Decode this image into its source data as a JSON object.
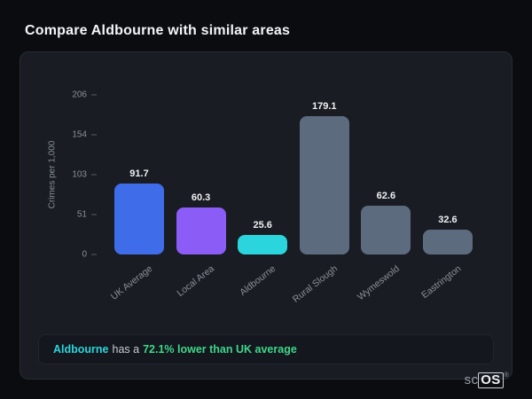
{
  "page": {
    "title": "Compare Aldbourne with similar areas"
  },
  "chart_data": {
    "type": "bar",
    "title": "",
    "categories": [
      "UK Average",
      "Local Area",
      "Aldbourne",
      "Rural Slough",
      "Wymeswold",
      "Eastrington"
    ],
    "values": [
      91.7,
      60.3,
      25.6,
      179.1,
      62.6,
      32.6
    ],
    "value_labels": [
      "91.7",
      "60.3",
      "25.6",
      "179.1",
      "62.6",
      "32.6"
    ],
    "bar_colors": [
      "#3f6de9",
      "#8b5cf6",
      "#2ad5dd",
      "#5d6b7f",
      "#5d6b7f",
      "#5d6b7f"
    ],
    "xlabel": "",
    "ylabel": "Crimes per 1,000",
    "ylim": [
      0,
      206
    ],
    "yticks": [
      0,
      51,
      103,
      154,
      206
    ],
    "grid": false,
    "legend": false
  },
  "footer": {
    "area_name": "Aldbourne",
    "connector": "has a",
    "stat": "72.1% lower than UK average",
    "accent_color": "#2bd5dc",
    "stat_color": "#3fd68b"
  },
  "branding": {
    "text_left": "sc",
    "text_right": "OS",
    "registered": "®"
  }
}
